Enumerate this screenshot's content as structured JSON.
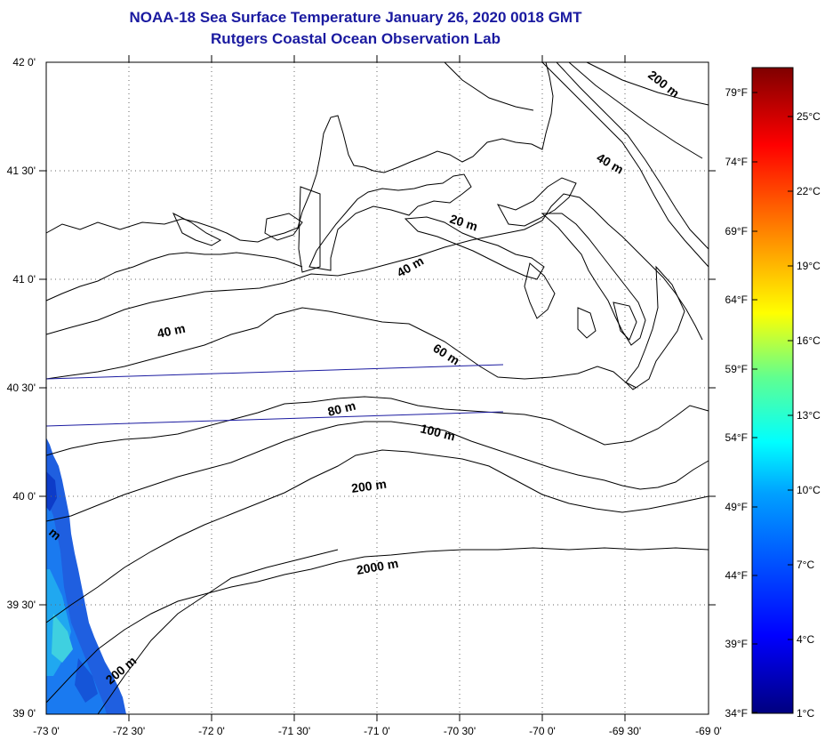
{
  "title": "NOAA-18 Sea Surface Temperature January 26, 2020 0018 GMT",
  "subtitle": "Rutgers Coastal Ocean Observation Lab",
  "map": {
    "lon_labels": [
      "-73 0'",
      "-72 30'",
      "-72 0'",
      "-71 30'",
      "-71 0'",
      "-70 30'",
      "-70 0'",
      "-69 30'",
      "-69 0'"
    ],
    "lat_labels": [
      "42 0'",
      "41 30'",
      "41 0'",
      "40 30'",
      "40 0'",
      "39 30'",
      "39 0'"
    ],
    "contour_labels": [
      "200 m",
      "40 m",
      "20 m",
      "40 m",
      "40 m",
      "60 m",
      "80 m",
      "100 m",
      "200 m",
      "2000 m",
      "200 m",
      "m"
    ],
    "lon_range": [
      -73.0,
      -69.0
    ],
    "lat_range": [
      39.0,
      42.0
    ],
    "grid": "dotted"
  },
  "colorbar": {
    "fahrenheit_labels": [
      "79°F",
      "74°F",
      "69°F",
      "64°F",
      "59°F",
      "54°F",
      "49°F",
      "44°F",
      "39°F",
      "34°F"
    ],
    "celsius_labels": [
      "25°C",
      "22°C",
      "19°C",
      "16°C",
      "13°C",
      "10°C",
      "7°C",
      "4°C",
      "1°C"
    ],
    "range_c": [
      1,
      28
    ],
    "colors": [
      "#00007f",
      "#0000ff",
      "#007fff",
      "#00ffff",
      "#7fff7f",
      "#ffff00",
      "#ff7f00",
      "#ff0000",
      "#7f0000"
    ]
  }
}
